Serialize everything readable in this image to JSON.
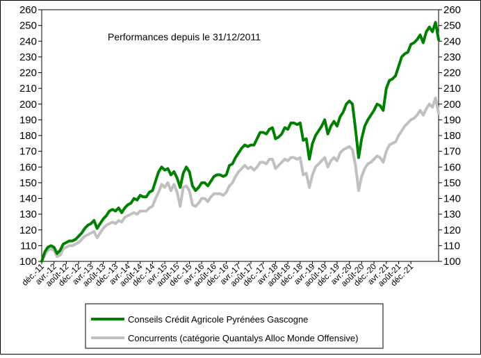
{
  "chart_data": {
    "type": "line",
    "title": "Performances depuis le 31/12/2011",
    "ylim": [
      100,
      260
    ],
    "y_ticks": [
      100,
      110,
      120,
      130,
      140,
      150,
      160,
      170,
      180,
      190,
      200,
      210,
      220,
      230,
      240,
      250,
      260
    ],
    "x_tick_labels": [
      "déc.-11",
      "avr.-12",
      "août-12",
      "déc.-12",
      "avr.-13",
      "août-13",
      "déc.-13",
      "avr.-14",
      "août-14",
      "déc.-14",
      "avr.-15",
      "août-15",
      "déc.-15",
      "avr.-16",
      "août-16",
      "déc.-16",
      "avr.-17",
      "août-17",
      "déc.-17",
      "avr.-18",
      "août-18",
      "déc.-18",
      "avr.-19",
      "août-19",
      "déc.-19",
      "avr.-20",
      "août-20",
      "déc.-20",
      "avr.-21",
      "août-21",
      "déc.-21"
    ],
    "x_start": "2011-12",
    "x_step_months": 1,
    "series": [
      {
        "name": "Conseils Crédit Agricole Pyrénées Gascogne",
        "color": "#008000",
        "values": [
          100,
          106,
          109,
          110,
          109,
          105,
          107,
          111,
          112,
          113,
          113,
          114,
          116,
          118,
          121,
          123,
          124,
          126,
          121,
          124,
          127,
          129,
          132,
          133,
          132,
          134,
          131,
          134,
          136,
          137,
          140,
          139,
          142,
          141,
          141,
          144,
          145,
          151,
          157,
          160,
          158,
          159,
          155,
          157,
          153,
          147,
          156,
          160,
          157,
          148,
          145,
          147,
          150,
          150,
          148,
          151,
          154,
          155,
          155,
          154,
          155,
          161,
          162,
          166,
          169,
          172,
          174,
          173,
          174,
          174,
          178,
          182,
          182,
          181,
          184,
          185,
          178,
          179,
          181,
          185,
          184,
          188,
          188,
          187,
          188,
          177,
          178,
          165,
          175,
          180,
          183,
          186,
          190,
          181,
          186,
          189,
          186,
          192,
          195,
          200,
          202,
          200,
          184,
          166,
          178,
          186,
          190,
          193,
          196,
          200,
          199,
          196,
          210,
          215,
          216,
          218,
          224,
          230,
          232,
          233,
          238,
          239,
          241,
          244,
          239,
          246,
          249,
          246,
          252,
          241
        ]
      },
      {
        "name": "Concurrents (catégorie Quantalys Alloc Monde Offensive)",
        "color": "#c0c0c0",
        "values": [
          100,
          104,
          107,
          108,
          107,
          103,
          104,
          108,
          109,
          110,
          110,
          111,
          112,
          114,
          116,
          117,
          118,
          119,
          115,
          118,
          121,
          123,
          124,
          125,
          124,
          126,
          125,
          128,
          129,
          130,
          131,
          130,
          132,
          132,
          132,
          134,
          135,
          140,
          144,
          149,
          147,
          150,
          145,
          149,
          144,
          135,
          147,
          148,
          145,
          136,
          135,
          137,
          140,
          140,
          138,
          141,
          143,
          143,
          143,
          142,
          144,
          148,
          150,
          154,
          157,
          159,
          161,
          159,
          160,
          158,
          160,
          163,
          163,
          162,
          165,
          165,
          159,
          161,
          163,
          165,
          164,
          166,
          166,
          165,
          166,
          155,
          156,
          147,
          155,
          160,
          162,
          164,
          166,
          160,
          164,
          166,
          164,
          169,
          171,
          172,
          173,
          171,
          161,
          145,
          154,
          159,
          162,
          163,
          165,
          167,
          166,
          163,
          170,
          174,
          175,
          176,
          180,
          183,
          186,
          188,
          190,
          191,
          193,
          196,
          193,
          197,
          200,
          198,
          204,
          194
        ]
      }
    ],
    "legend_position": "bottom",
    "dual_y_axis": true,
    "grid": false
  }
}
